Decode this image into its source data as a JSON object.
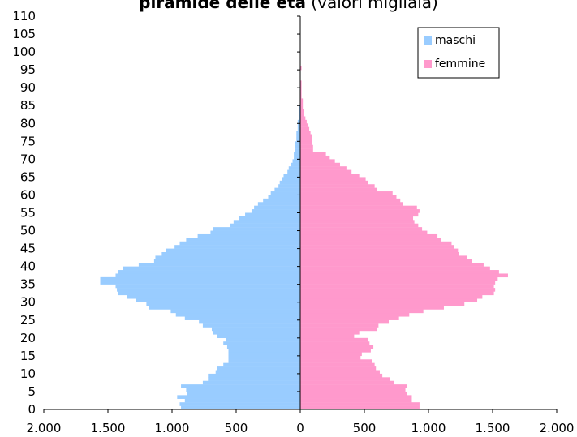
{
  "title": {
    "bold_part": "piramide delle età",
    "rest": " (valori migliaia)"
  },
  "colors": {
    "maschi": "#99ccff",
    "femmine": "#ff99cc",
    "axis": "#000000",
    "legend_border": "#000000"
  },
  "chart_data": {
    "type": "bar",
    "orientation": "horizontal-population-pyramid",
    "legend_position": "top-right",
    "grid": false,
    "ylabel": "",
    "xlabel": "",
    "xlim": [
      -2000,
      2000
    ],
    "ylim": [
      0,
      110
    ],
    "x_tick_labels": [
      "2.000",
      "1.500",
      "1.000",
      "500",
      "0",
      "500",
      "1.000",
      "1.500",
      "2.000"
    ],
    "y_tick_labels": [
      "0",
      "5",
      "10",
      "15",
      "20",
      "25",
      "30",
      "35",
      "40",
      "45",
      "50",
      "55",
      "60",
      "65",
      "70",
      "75",
      "80",
      "85",
      "90",
      "95",
      "100",
      "105",
      "110"
    ],
    "categories": [
      0,
      1,
      2,
      3,
      4,
      5,
      6,
      7,
      8,
      9,
      10,
      11,
      12,
      13,
      14,
      15,
      16,
      17,
      18,
      19,
      20,
      21,
      22,
      23,
      24,
      25,
      26,
      27,
      28,
      29,
      30,
      31,
      32,
      33,
      34,
      35,
      36,
      37,
      38,
      39,
      40,
      41,
      42,
      43,
      44,
      45,
      46,
      47,
      48,
      49,
      50,
      51,
      52,
      53,
      54,
      55,
      56,
      57,
      58,
      59,
      60,
      61,
      62,
      63,
      64,
      65,
      66,
      67,
      68,
      69,
      70,
      71,
      72,
      73,
      74,
      75,
      76,
      77,
      78,
      79,
      80,
      81,
      82,
      83,
      84,
      85,
      86,
      87,
      88,
      89,
      90,
      91,
      92,
      93,
      94,
      95
    ],
    "series": [
      {
        "name": "maschi",
        "values": [
          930,
          940,
          900,
          960,
          880,
          890,
          930,
          760,
          720,
          720,
          660,
          650,
          600,
          560,
          560,
          560,
          560,
          570,
          600,
          580,
          650,
          680,
          690,
          760,
          790,
          900,
          970,
          1010,
          1180,
          1200,
          1280,
          1350,
          1420,
          1430,
          1440,
          1560,
          1560,
          1440,
          1420,
          1380,
          1260,
          1140,
          1130,
          1080,
          1050,
          980,
          940,
          890,
          800,
          700,
          680,
          550,
          520,
          480,
          430,
          380,
          360,
          330,
          290,
          250,
          230,
          200,
          170,
          160,
          140,
          130,
          100,
          90,
          70,
          60,
          50,
          50,
          40,
          40,
          40,
          30,
          30,
          30,
          20,
          20,
          20,
          10,
          10,
          10,
          10,
          0,
          0,
          0,
          0,
          0,
          0,
          0,
          0,
          0,
          0,
          0
        ]
      },
      {
        "name": "femmine",
        "values": [
          930,
          930,
          870,
          870,
          830,
          820,
          830,
          730,
          700,
          640,
          620,
          590,
          580,
          560,
          470,
          480,
          550,
          570,
          540,
          530,
          420,
          460,
          600,
          610,
          690,
          770,
          850,
          960,
          1120,
          1280,
          1380,
          1420,
          1510,
          1520,
          1510,
          1520,
          1540,
          1620,
          1550,
          1480,
          1430,
          1340,
          1300,
          1240,
          1230,
          1200,
          1180,
          1100,
          1070,
          990,
          950,
          920,
          890,
          880,
          920,
          930,
          910,
          800,
          780,
          750,
          720,
          600,
          580,
          530,
          510,
          460,
          400,
          360,
          310,
          270,
          230,
          200,
          100,
          100,
          90,
          90,
          90,
          80,
          70,
          60,
          50,
          40,
          30,
          30,
          20,
          20,
          20,
          10,
          10,
          10,
          10,
          10,
          0,
          0,
          0,
          10
        ]
      }
    ]
  }
}
